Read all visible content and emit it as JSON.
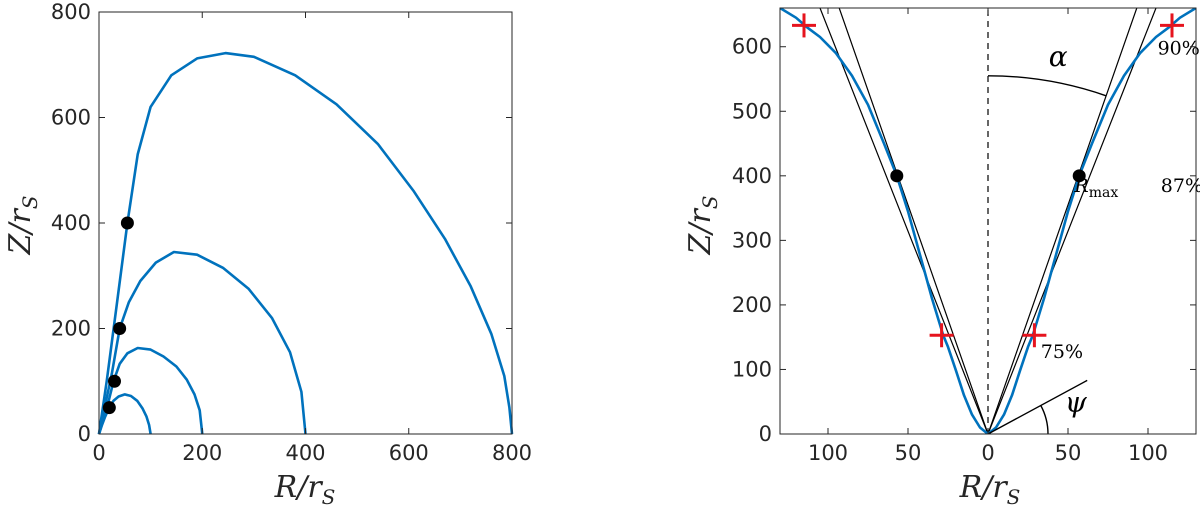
{
  "chart_data": [
    {
      "type": "line",
      "xlabel": "R/r_S",
      "ylabel": "Z/r_S",
      "xlim": [
        0,
        800
      ],
      "ylim": [
        0,
        800
      ],
      "xticks": [
        0,
        200,
        400,
        600,
        800
      ],
      "yticks": [
        0,
        200,
        400,
        600,
        800
      ],
      "series": [
        {
          "points": [
            [
              0,
              0
            ],
            [
              5,
              15
            ],
            [
              12,
              33
            ],
            [
              20,
              50
            ],
            [
              28,
              63
            ],
            [
              38,
              71
            ],
            [
              50,
              75
            ],
            [
              62,
              72
            ],
            [
              74,
              63
            ],
            [
              84,
              49
            ],
            [
              92,
              33
            ],
            [
              97,
              17
            ],
            [
              100,
              0
            ]
          ]
        },
        {
          "points": [
            [
              0,
              0
            ],
            [
              8,
              25
            ],
            [
              18,
              60
            ],
            [
              28,
              100
            ],
            [
              40,
              133
            ],
            [
              55,
              153
            ],
            [
              75,
              163
            ],
            [
              100,
              160
            ],
            [
              125,
              147
            ],
            [
              150,
              128
            ],
            [
              170,
              103
            ],
            [
              185,
              75
            ],
            [
              195,
              45
            ],
            [
              200,
              0
            ]
          ]
        },
        {
          "points": [
            [
              0,
              0
            ],
            [
              12,
              55
            ],
            [
              25,
              115
            ],
            [
              40,
              200
            ],
            [
              58,
              250
            ],
            [
              80,
              290
            ],
            [
              110,
              325
            ],
            [
              145,
              345
            ],
            [
              190,
              340
            ],
            [
              240,
              315
            ],
            [
              290,
              275
            ],
            [
              335,
              220
            ],
            [
              370,
              155
            ],
            [
              392,
              80
            ],
            [
              400,
              0
            ]
          ]
        },
        {
          "points": [
            [
              0,
              0
            ],
            [
              15,
              100
            ],
            [
              35,
              250
            ],
            [
              55,
              400
            ],
            [
              75,
              530
            ],
            [
              100,
              620
            ],
            [
              140,
              680
            ],
            [
              190,
              712
            ],
            [
              245,
              722
            ],
            [
              300,
              715
            ],
            [
              380,
              680
            ],
            [
              460,
              625
            ],
            [
              540,
              550
            ],
            [
              610,
              460
            ],
            [
              670,
              370
            ],
            [
              720,
              280
            ],
            [
              760,
              190
            ],
            [
              785,
              110
            ],
            [
              795,
              50
            ],
            [
              800,
              0
            ]
          ]
        }
      ],
      "markers": [
        [
          20,
          50
        ],
        [
          30,
          100
        ],
        [
          40,
          200
        ],
        [
          55,
          400
        ]
      ]
    },
    {
      "type": "line",
      "xlabel": "R/r_S",
      "ylabel": "Z/r_S",
      "xlim": [
        -130,
        130
      ],
      "ylim": [
        0,
        660
      ],
      "xticks": [
        -100,
        -50,
        0,
        50,
        100
      ],
      "xtick_labels": [
        "100",
        "50",
        "0",
        "50",
        "100"
      ],
      "yticks": [
        0,
        100,
        200,
        300,
        400,
        500,
        600
      ],
      "series": [
        {
          "points": [
            [
              0,
              0
            ],
            [
              5,
              10
            ],
            [
              10,
              30
            ],
            [
              15,
              60
            ],
            [
              20,
              98
            ],
            [
              25,
              135
            ],
            [
              28,
              153
            ],
            [
              35,
              210
            ],
            [
              40,
              255
            ],
            [
              45,
              300
            ],
            [
              50,
              345
            ],
            [
              57,
              400
            ],
            [
              65,
              450
            ],
            [
              75,
              510
            ],
            [
              85,
              555
            ],
            [
              95,
              590
            ],
            [
              105,
              615
            ],
            [
              113,
              630
            ],
            [
              120,
              645
            ],
            [
              130,
              660
            ]
          ]
        }
      ],
      "markers": [
        [
          -57,
          400
        ],
        [
          57,
          400
        ]
      ],
      "crosses": [
        [
          -115,
          633
        ],
        [
          -29,
          153
        ],
        [
          29,
          153
        ],
        [
          115,
          633
        ]
      ],
      "lines": [
        {
          "from": [
            0,
            0
          ],
          "to": [
            -93,
            660
          ]
        },
        {
          "from": [
            0,
            0
          ],
          "to": [
            93,
            660
          ]
        },
        {
          "from": [
            0,
            0
          ],
          "to": [
            -105,
            660
          ]
        },
        {
          "from": [
            0,
            0
          ],
          "to": [
            105,
            660
          ]
        }
      ],
      "annotations": [
        {
          "text": "α",
          "x": 38,
          "y": 570
        },
        {
          "text": "ψ",
          "x": 48,
          "y": 35
        },
        {
          "text": "R",
          "sub": "max",
          "x": 54,
          "y": 375
        },
        {
          "text": "90%",
          "x": 106,
          "y": 588
        },
        {
          "text": "87%",
          "x": 108,
          "y": 375
        },
        {
          "text": "75%",
          "x": 33,
          "y": 118
        }
      ]
    }
  ]
}
